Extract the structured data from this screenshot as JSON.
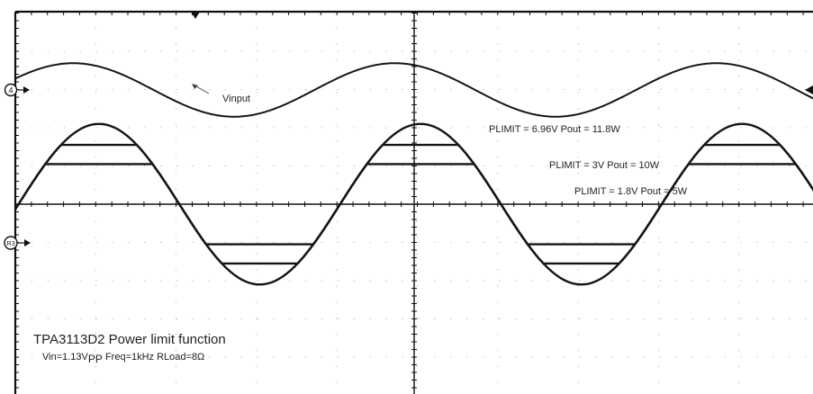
{
  "chart_data": {
    "type": "line",
    "title": "TPA3113D2 Power limit function",
    "subtitle": "Vin=1.13VPP Freq=1kHz RLoad=8Ω",
    "subtitle_parts": {
      "prefix": "Vin=1.13V",
      "subscript": "PP",
      "suffix": " Freq=1kHz RLoad=8Ω"
    },
    "grid": true,
    "grid_divisions": {
      "x": 10,
      "y": 8
    },
    "channel_markers": [
      "4",
      "R3"
    ],
    "input_label": "Vinput",
    "time_axis": {
      "unit": "ms",
      "range": [
        0,
        2.5
      ],
      "per_division": 0.25
    },
    "series": [
      {
        "name": "Vinput",
        "amplitude_div": 0.7,
        "frequency_khz": 1,
        "clip_div": null
      },
      {
        "name": "PLIMIT = 6.96V Pout = 11.8W",
        "amplitude_div": 2.1,
        "frequency_khz": 1,
        "clip_div": null
      },
      {
        "name": "PLIMIT = 3V Pout = 10W",
        "amplitude_div": 2.1,
        "frequency_khz": 1,
        "clip_div": 1.55
      },
      {
        "name": "PLIMIT = 1.8V Pout = 5W",
        "amplitude_div": 2.1,
        "frequency_khz": 1,
        "clip_div": 1.05
      }
    ],
    "colors": {
      "trace": "#151515",
      "grid": "#9a9a9a",
      "frame": "#111111"
    }
  }
}
